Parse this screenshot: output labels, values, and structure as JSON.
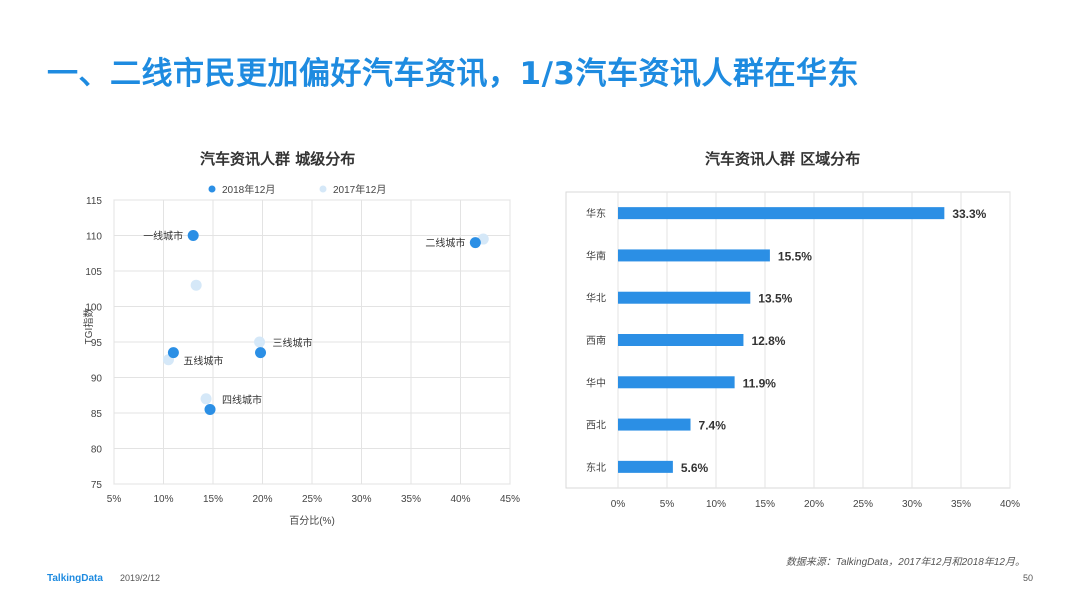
{
  "page": {
    "title": "一、二线市民更加偏好汽车资讯，1/3汽车资讯人群在华东",
    "source": "数据来源：TalkingData，2017年12月和2018年12月。",
    "brand": "TalkingData",
    "date": "2019/2/12",
    "page_number": "50"
  },
  "colors": {
    "accent": "#1e8be0",
    "light": "#d5e8f8",
    "bar": "#2b8fe5"
  },
  "chart_data": [
    {
      "type": "scatter",
      "title": "汽车资讯人群  城级分布",
      "xlabel": "百分比(%)",
      "ylabel": "TGI指数",
      "xlim": [
        5,
        45
      ],
      "ylim": [
        75,
        115
      ],
      "x_ticks": [
        "5%",
        "10%",
        "15%",
        "20%",
        "25%",
        "30%",
        "35%",
        "40%",
        "45%"
      ],
      "y_ticks": [
        "75",
        "80",
        "85",
        "90",
        "95",
        "100",
        "105",
        "110",
        "115"
      ],
      "legend_position": "top",
      "series": [
        {
          "name": "2018年12月",
          "color": "#2b8fe5",
          "points": [
            {
              "x": 13.0,
              "y": 110.0
            },
            {
              "x": 41.5,
              "y": 109.0
            },
            {
              "x": 19.8,
              "y": 93.5
            },
            {
              "x": 11.0,
              "y": 93.5
            },
            {
              "x": 14.7,
              "y": 85.5
            }
          ]
        },
        {
          "name": "2017年12月",
          "color": "#d5e8f8",
          "points": [
            {
              "x": 13.3,
              "y": 103.0
            },
            {
              "x": 42.3,
              "y": 109.5
            },
            {
              "x": 19.7,
              "y": 95.0
            },
            {
              "x": 10.5,
              "y": 92.5
            },
            {
              "x": 14.3,
              "y": 87.0
            }
          ]
        }
      ],
      "annotations": [
        {
          "text": "一线城市",
          "x": 13.0,
          "y": 110.0,
          "side": "left"
        },
        {
          "text": "二线城市",
          "x": 41.5,
          "y": 109.0,
          "side": "left"
        },
        {
          "text": "三线城市",
          "x": 19.8,
          "y": 93.5,
          "side": "upper-right"
        },
        {
          "text": "五线城市",
          "x": 11.0,
          "y": 93.5,
          "side": "lower-right"
        },
        {
          "text": "四线城市",
          "x": 14.7,
          "y": 85.5,
          "side": "upper-right"
        }
      ],
      "grid": true
    },
    {
      "type": "bar",
      "orientation": "horizontal",
      "title": "汽车资讯人群  区域分布",
      "categories": [
        "华东",
        "华南",
        "华北",
        "西南",
        "华中",
        "西北",
        "东北"
      ],
      "values": [
        33.3,
        15.5,
        13.5,
        12.8,
        11.9,
        7.4,
        5.6
      ],
      "value_labels": [
        "33.3%",
        "15.5%",
        "13.5%",
        "12.8%",
        "11.9%",
        "7.4%",
        "5.6%"
      ],
      "xlim": [
        0,
        40
      ],
      "x_ticks": [
        "0%",
        "5%",
        "10%",
        "15%",
        "20%",
        "25%",
        "30%",
        "35%",
        "40%"
      ],
      "grid": true
    }
  ]
}
